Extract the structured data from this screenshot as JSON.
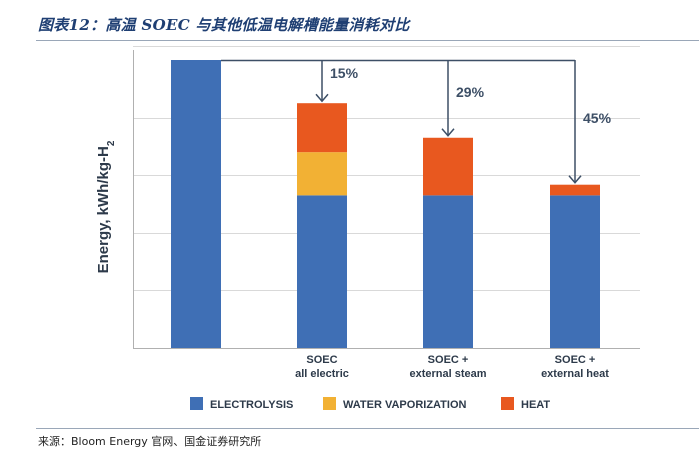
{
  "figure": {
    "title": "图表12：高温 SOEC 与其他低温电解槽能量消耗对比",
    "source": "来源：Bloom Energy 官网、国金证券研究所"
  },
  "chart_data": {
    "type": "bar",
    "stacked": true,
    "ylabel": "Energy, kWh/kg-H₂",
    "ylabel_parts": [
      "Energy, kWh/kg-H",
      "2"
    ],
    "ylim": [
      0,
      100
    ],
    "grid": true,
    "legend_position": "bottom",
    "categories": [
      [
        ""
      ],
      [
        "SOEC",
        "all electric"
      ],
      [
        "SOEC +",
        "external steam"
      ],
      [
        "SOEC +",
        "external heat"
      ]
    ],
    "series": [
      {
        "name": "ELECTROLYSIS",
        "color": "#3f6fb5",
        "values": [
          100,
          53,
          53,
          53
        ]
      },
      {
        "name": "WATER VAPORIZATION",
        "color": "#f2b134",
        "values": [
          0,
          15,
          0,
          0
        ]
      },
      {
        "name": "HEAT",
        "color": "#e8581f",
        "values": [
          0,
          17,
          20,
          3.7
        ]
      }
    ],
    "annotations": [
      {
        "category_index": 1,
        "label": "15%"
      },
      {
        "category_index": 2,
        "label": "29%"
      },
      {
        "category_index": 3,
        "label": "45%"
      }
    ],
    "colors": {
      "grid": "#d9d9d9",
      "arrow": "#3d4f66",
      "axis": "#b0b0b0"
    }
  }
}
